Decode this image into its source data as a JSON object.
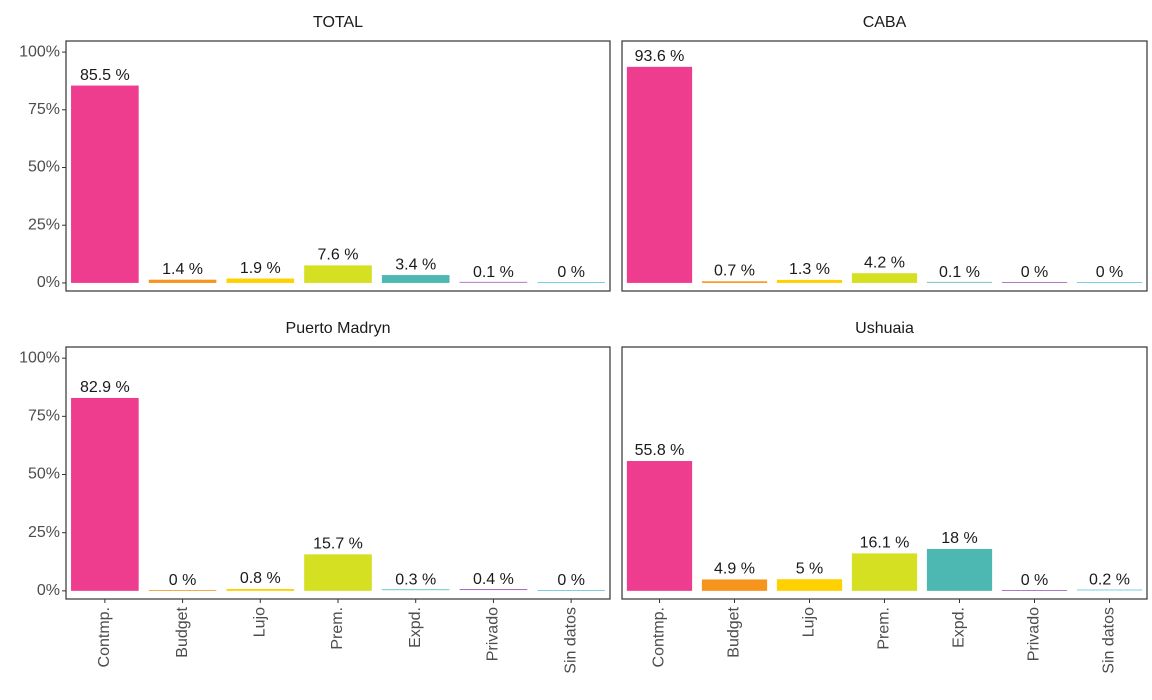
{
  "chart_data": {
    "type": "bar",
    "categories": [
      "Contmp.",
      "Budget",
      "Lujo",
      "Prem.",
      "Expd.",
      "Privado",
      "Sin datos"
    ],
    "colors": [
      "#ee3d8f",
      "#f7941d",
      "#ffd100",
      "#d4e021",
      "#4db8b1",
      "#9b59b6",
      "#5bc4d6"
    ],
    "ylim": [
      -3.5,
      104.8
    ],
    "yticks": [
      {
        "value": 0,
        "label": "0%"
      },
      {
        "value": 25,
        "label": "25%"
      },
      {
        "value": 50,
        "label": "50%"
      },
      {
        "value": 75,
        "label": "75%"
      },
      {
        "value": 100,
        "label": "100%"
      }
    ],
    "panels": [
      {
        "title": "TOTAL",
        "values": [
          85.5,
          1.4,
          1.9,
          7.6,
          3.4,
          0.1,
          0
        ],
        "value_labels": [
          "85.5 %",
          "1.4 %",
          "1.9 %",
          "7.6 %",
          "3.4 %",
          "0.1 %",
          "0 %"
        ]
      },
      {
        "title": "CABA",
        "values": [
          93.6,
          0.7,
          1.3,
          4.2,
          0.1,
          0,
          0
        ],
        "value_labels": [
          "93.6 %",
          "0.7 %",
          "1.3 %",
          "4.2 %",
          "0.1 %",
          "0 %",
          "0 %"
        ]
      },
      {
        "title": "Puerto Madryn",
        "values": [
          82.9,
          0,
          0.8,
          15.7,
          0.3,
          0.4,
          0
        ],
        "value_labels": [
          "82.9 %",
          "0 %",
          "0.8 %",
          "15.7 %",
          "0.3 %",
          "0.4 %",
          "0 %"
        ]
      },
      {
        "title": "Ushuaia",
        "values": [
          55.8,
          4.9,
          5,
          16.1,
          18,
          0,
          0.2
        ],
        "value_labels": [
          "55.8 %",
          "4.9 %",
          "5 %",
          "16.1 %",
          "18 %",
          "0 %",
          "0.2 %"
        ]
      }
    ]
  }
}
